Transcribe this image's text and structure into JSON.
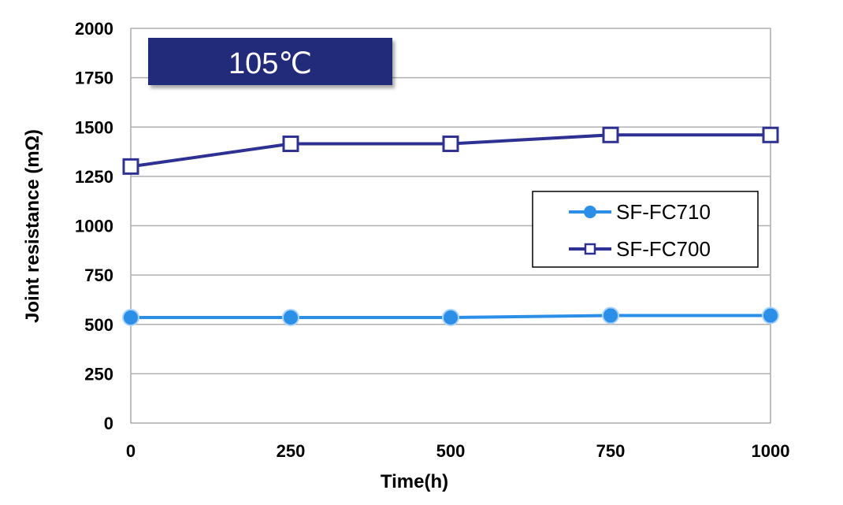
{
  "chart_data": {
    "type": "line",
    "title": "",
    "annotation": "105℃",
    "xlabel": "Time(h)",
    "ylabel": "Joint resistance  (mΩ)",
    "x": [
      0,
      250,
      500,
      750,
      1000
    ],
    "xlim": [
      0,
      1000
    ],
    "ylim": [
      0,
      2000
    ],
    "x_ticks": [
      "0",
      "250",
      "500",
      "750",
      "1000"
    ],
    "y_ticks": [
      "0",
      "250",
      "500",
      "750",
      "1000",
      "1250",
      "1500",
      "1750",
      "2000"
    ],
    "grid": true,
    "legend_position": "right",
    "series": [
      {
        "name": "SF-FC710",
        "marker": "filled-circle",
        "color": "#2b8fe8",
        "values": [
          535,
          535,
          535,
          545,
          545
        ]
      },
      {
        "name": "SF-FC700",
        "marker": "hollow-square",
        "color": "#2e3192",
        "values": [
          1300,
          1415,
          1415,
          1460,
          1460
        ]
      }
    ]
  },
  "colors": {
    "badge": "#232b7a",
    "grid": "#b0b0b0",
    "axis": "#808080"
  }
}
